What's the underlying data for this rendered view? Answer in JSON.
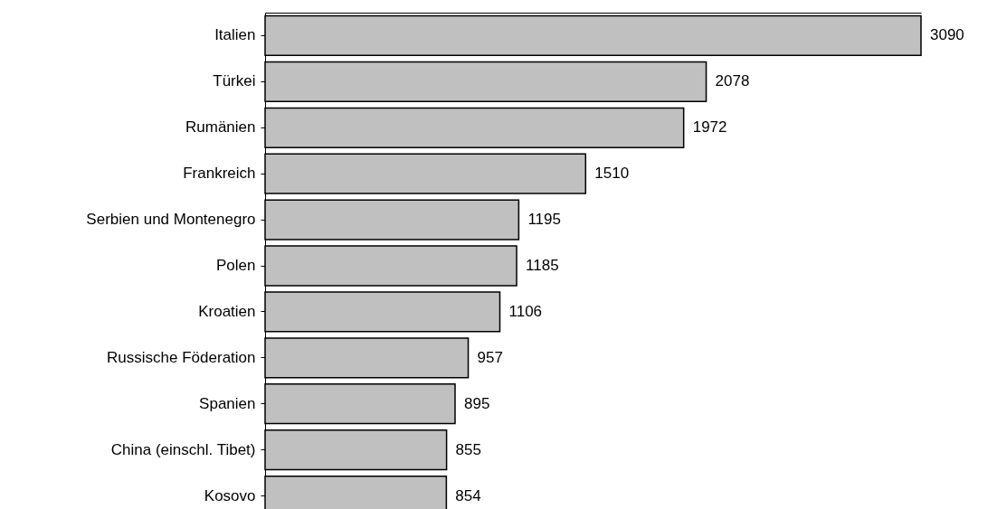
{
  "chart_data": {
    "type": "bar",
    "orientation": "horizontal",
    "categories": [
      "Italien",
      "Türkei",
      "Rumänien",
      "Frankreich",
      "Serbien und Montenegro",
      "Polen",
      "Kroatien",
      "Russische Föderation",
      "Spanien",
      "China (einschl. Tibet)",
      "Kosovo"
    ],
    "values": [
      3090,
      2078,
      1972,
      1510,
      1195,
      1185,
      1106,
      957,
      895,
      855,
      854
    ],
    "color": "#c0c0c0",
    "data_labels": true
  }
}
